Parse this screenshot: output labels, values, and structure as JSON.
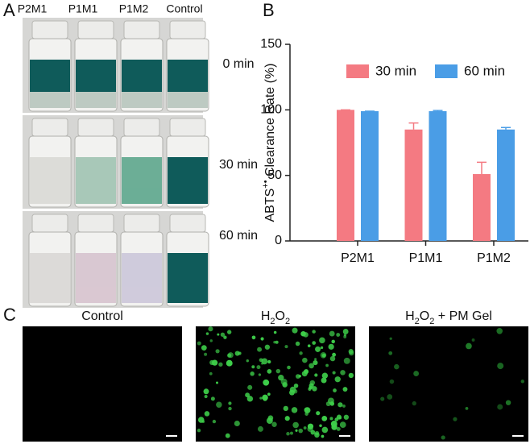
{
  "panels": {
    "a": {
      "letter": "A",
      "columns": [
        "P2M1",
        "P1M1",
        "P1M2",
        "Control"
      ],
      "rows": [
        "0 min",
        "30 min",
        "60 min"
      ]
    },
    "b": {
      "letter": "B"
    },
    "c": {
      "letter": "C",
      "titles": [
        [
          "Control"
        ],
        [
          "H",
          "2",
          "O",
          "2"
        ],
        [
          "H",
          "2",
          "O",
          "2",
          " + PM Gel"
        ]
      ]
    }
  },
  "chart_data": {
    "type": "bar",
    "ylabel": [
      "ABTS",
      "+•",
      " Clearance Rate (%)"
    ],
    "categories": [
      "P2M1",
      "P1M1",
      "P1M2"
    ],
    "series": [
      {
        "name": "30 min",
        "color": "#f47a82",
        "values": [
          100,
          85,
          51
        ],
        "errors": [
          0,
          5,
          9
        ]
      },
      {
        "name": "60 min",
        "color": "#4a9de6",
        "values": [
          99,
          99,
          85
        ],
        "errors": [
          0,
          0.5,
          1.5
        ]
      }
    ],
    "ylim": [
      0,
      150
    ],
    "yticks": [
      0,
      50,
      100,
      150
    ],
    "grid": false,
    "legend": "top"
  }
}
